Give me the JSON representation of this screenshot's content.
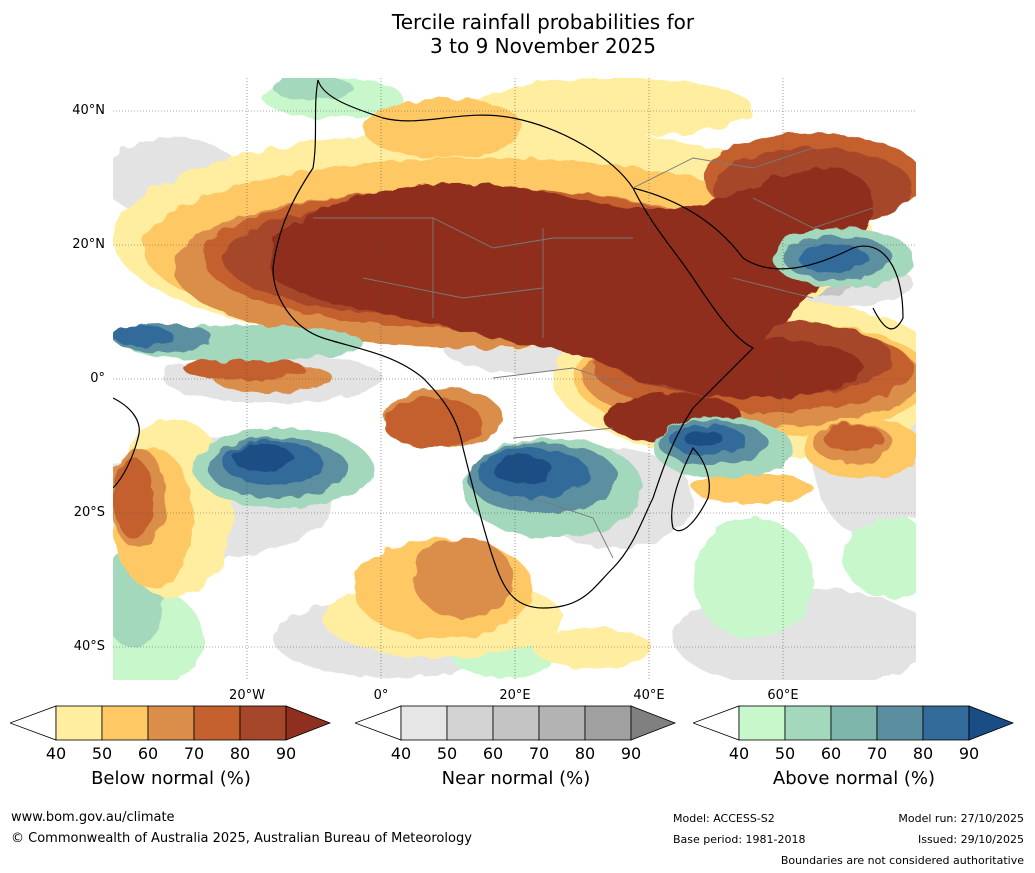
{
  "title": {
    "line1": "Tercile rainfall probabilities for",
    "line2": "3 to 9 November 2025"
  },
  "map": {
    "lat_labels": [
      "40°N",
      "20°N",
      "0°",
      "20°S",
      "40°S"
    ],
    "lon_labels": [
      "20°W",
      "0°",
      "20°E",
      "40°E",
      "60°E"
    ]
  },
  "legends": [
    {
      "label": "Below normal (%)",
      "ticks": [
        "40",
        "50",
        "60",
        "70",
        "80",
        "90"
      ],
      "colors": [
        "#ffffff",
        "#ffeda0",
        "#fec965",
        "#db8e4a",
        "#c4612f",
        "#a6462a",
        "#8f2f1f"
      ]
    },
    {
      "label": "Near normal (%)",
      "ticks": [
        "40",
        "50",
        "60",
        "70",
        "80",
        "90"
      ],
      "colors": [
        "#ffffff",
        "#e6e6e6",
        "#d3d3d3",
        "#c4c4c4",
        "#b3b3b3",
        "#a0a0a0",
        "#808080"
      ]
    },
    {
      "label": "Above normal (%)",
      "ticks": [
        "40",
        "50",
        "60",
        "70",
        "80",
        "90"
      ],
      "colors": [
        "#ffffff",
        "#c7f7cb",
        "#a4d8bc",
        "#7fb6ac",
        "#5b8fa0",
        "#326a99",
        "#1a4d85"
      ]
    }
  ],
  "footer": {
    "website": "www.bom.gov.au/climate",
    "copyright": "© Commonwealth of Australia 2025, Australian Bureau of Meteorology",
    "model": "Model: ACCESS-S2",
    "base_period": "Base period: 1981-2018",
    "model_run": "Model run: 27/10/2025",
    "issued": "Issued: 29/10/2025",
    "disclaimer": "Boundaries are not considered authoritative"
  }
}
